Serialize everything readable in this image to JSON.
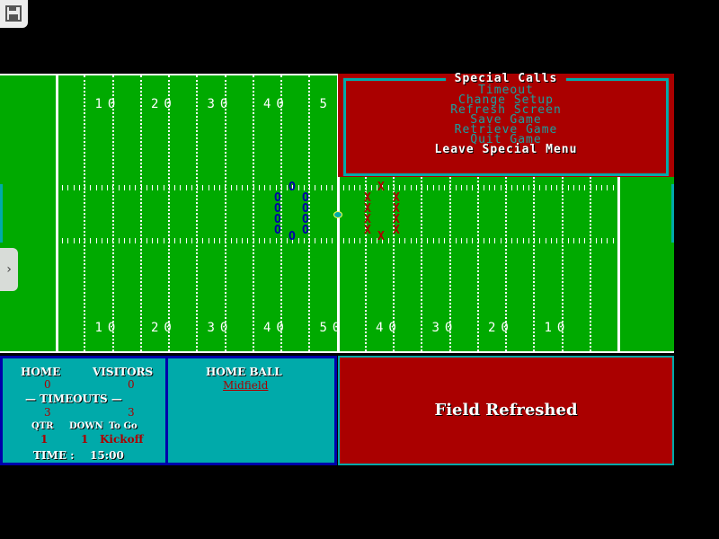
{
  "toolbar": {
    "save_icon": "floppy-disk-icon",
    "side_icon": "chevron-right-icon",
    "side_glyph": "›"
  },
  "colors": {
    "field": "#00aa00",
    "home": "#0000aa",
    "visitors": "#aa0000",
    "panel": "#00aaaa"
  },
  "field": {
    "top_numbers": [
      "10",
      "20",
      "30",
      "40",
      "5"
    ],
    "bottom_numbers": [
      "10",
      "20",
      "30",
      "40",
      "50",
      "40",
      "30",
      "20",
      "10"
    ],
    "home_players_glyph": "O",
    "visitor_players_glyph": "X"
  },
  "menu": {
    "title": "Special Calls",
    "items": [
      "Timeout",
      "Change Setup",
      "Refresh Screen",
      "Save Game",
      "Retrieve Game",
      "Quit Game",
      "Leave Special Menu"
    ],
    "selected_index": 6
  },
  "scoreboard": {
    "home_label": "HOME",
    "visitors_label": "VISITORS",
    "home_score": "0",
    "visitors_score": "0",
    "timeouts_label": "— TIMEOUTS —",
    "home_timeouts": "3",
    "visitors_timeouts": "3",
    "qtr_label": "QTR",
    "down_label": "DOWN",
    "togo_label": "To Go",
    "qtr": "1",
    "down": "1",
    "togo": "Kickoff",
    "time_label": "TIME :",
    "time": "15:00"
  },
  "possession": {
    "label": "HOME BALL",
    "position": "Midfield"
  },
  "message": "Field Refreshed"
}
